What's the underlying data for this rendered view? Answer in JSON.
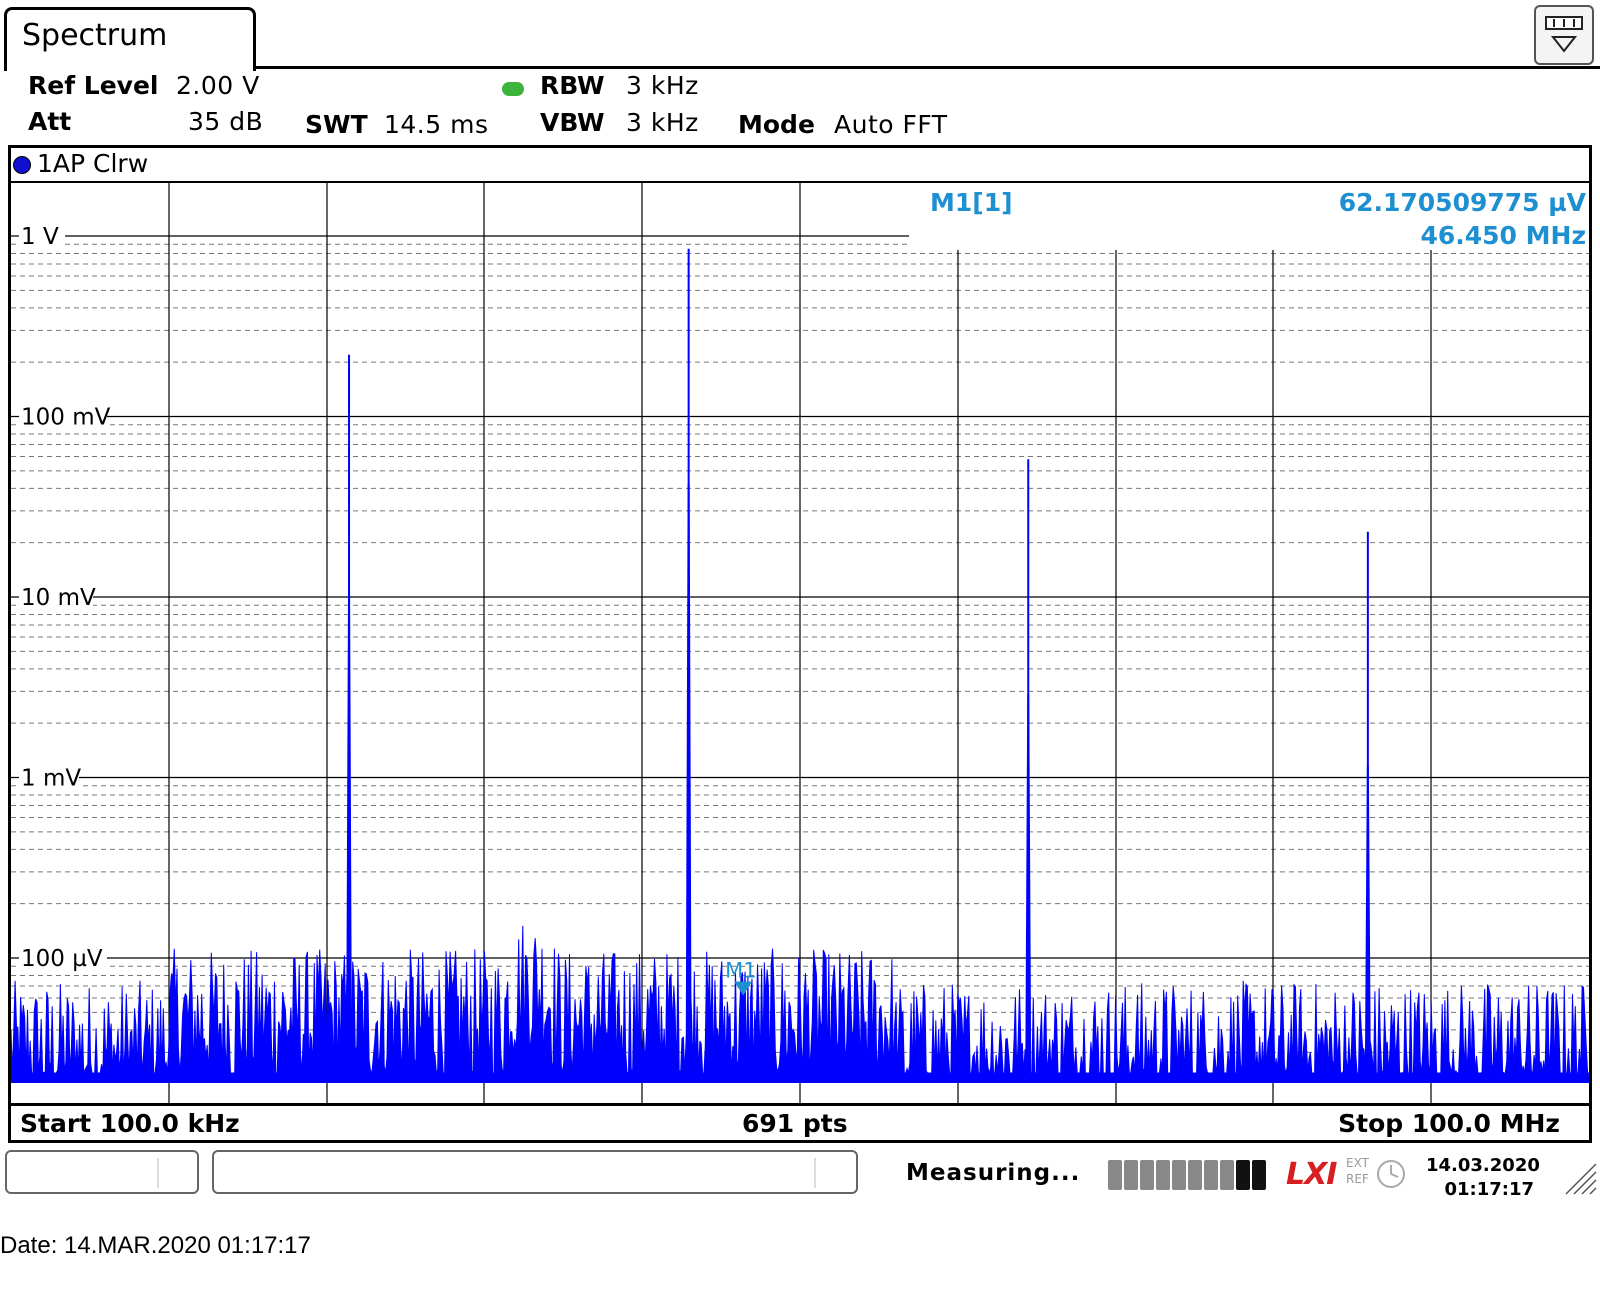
{
  "tab": {
    "title": "Spectrum"
  },
  "params": {
    "ref_level_label": "Ref Level",
    "ref_level_value": "2.00 V",
    "att_label": "Att",
    "att_value": "35 dB",
    "swt_label": "SWT",
    "swt_value": "14.5 ms",
    "rbw_label": "RBW",
    "rbw_value": "3 kHz",
    "vbw_label": "VBW",
    "vbw_value": "3 kHz",
    "mode_label": "Mode",
    "mode_value": "Auto FFT"
  },
  "trace": {
    "label": "1AP Clrw",
    "color": "#0000ff"
  },
  "marker": {
    "name": "M1[1]",
    "value": "62.170509775 µV",
    "freq": "46.450 MHz",
    "tag": "M1",
    "color": "#1e8fd0",
    "freq_mhz": 46.45,
    "level_v": 6.2e-05
  },
  "footer": {
    "start": "Start 100.0 kHz",
    "points": "691 pts",
    "stop": "Stop 100.0 MHz"
  },
  "status": {
    "text": "Measuring...",
    "date": "14.03.2020",
    "time": "01:17:17",
    "ext_ref": "EXT\nREF",
    "lxi": "LXI"
  },
  "capture_date": "Date: 14.MAR.2020  01:17:17",
  "chart_data": {
    "type": "line",
    "x_unit": "MHz",
    "xlim": [
      0.1,
      100.0
    ],
    "y_unit": "V",
    "y_scale": "log",
    "ylim": [
      1e-05,
      2.0
    ],
    "y_ticks": [
      {
        "value": 1,
        "label": "1 V"
      },
      {
        "value": 0.1,
        "label": "100 mV"
      },
      {
        "value": 0.01,
        "label": "10 mV"
      },
      {
        "value": 0.001,
        "label": "1 mV"
      },
      {
        "value": 0.0001,
        "label": "100 µV"
      }
    ],
    "x_divisions": 10,
    "grid": true,
    "noise_floor_v": 3e-05,
    "peaks": [
      {
        "freq_mhz": 21.5,
        "level_v": 0.22
      },
      {
        "freq_mhz": 43.0,
        "level_v": 0.85
      },
      {
        "freq_mhz": 64.5,
        "level_v": 0.058
      },
      {
        "freq_mhz": 86.0,
        "level_v": 0.023
      }
    ],
    "hump": {
      "from_mhz": 30.0,
      "to_mhz": 36.0,
      "level_v": 9e-05
    }
  }
}
